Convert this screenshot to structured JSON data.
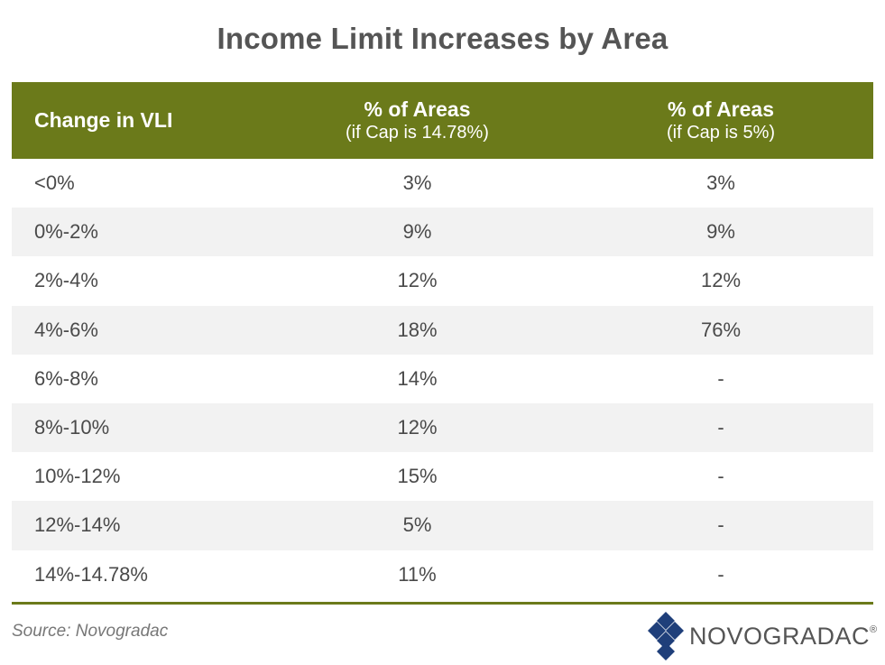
{
  "title": "Income Limit Increases by Area",
  "header": {
    "col1": "Change in VLI",
    "col2_main": "% of Areas",
    "col2_sub": "(if Cap is 14.78%)",
    "col3_main": "% of Areas",
    "col3_sub": "(if Cap is 5%)"
  },
  "rows": [
    {
      "range": "<0%",
      "cap1478": "3%",
      "cap5": "3%"
    },
    {
      "range": "0%-2%",
      "cap1478": "9%",
      "cap5": "9%"
    },
    {
      "range": "2%-4%",
      "cap1478": "12%",
      "cap5": "12%"
    },
    {
      "range": "4%-6%",
      "cap1478": "18%",
      "cap5": "76%"
    },
    {
      "range": "6%-8%",
      "cap1478": "14%",
      "cap5": "-"
    },
    {
      "range": "8%-10%",
      "cap1478": "12%",
      "cap5": "-"
    },
    {
      "range": "10%-12%",
      "cap1478": "15%",
      "cap5": "-"
    },
    {
      "range": "12%-14%",
      "cap1478": "5%",
      "cap5": "-"
    },
    {
      "range": "14%-14.78%",
      "cap1478": "11%",
      "cap5": "-"
    }
  ],
  "source": "Source: Novogradac",
  "logo": {
    "text": "NOVOGRADAC",
    "mark": "®",
    "icon": "novogradac-diamond-icon"
  },
  "colors": {
    "header_bg": "#6b7a1a",
    "stripe": "#f2f2f2",
    "logo_blue": "#1f3f7a"
  },
  "chart_data": {
    "type": "table",
    "title": "Income Limit Increases by Area",
    "columns": [
      "Change in VLI",
      "% of Areas (if Cap is 14.78%)",
      "% of Areas (if Cap is 5%)"
    ],
    "categories": [
      "<0%",
      "0%-2%",
      "2%-4%",
      "4%-6%",
      "6%-8%",
      "8%-10%",
      "10%-12%",
      "12%-14%",
      "14%-14.78%"
    ],
    "series": [
      {
        "name": "% of Areas (if Cap is 14.78%)",
        "values": [
          3,
          9,
          12,
          18,
          14,
          12,
          15,
          5,
          11
        ]
      },
      {
        "name": "% of Areas (if Cap is 5%)",
        "values": [
          3,
          9,
          12,
          76,
          null,
          null,
          null,
          null,
          null
        ]
      }
    ]
  }
}
